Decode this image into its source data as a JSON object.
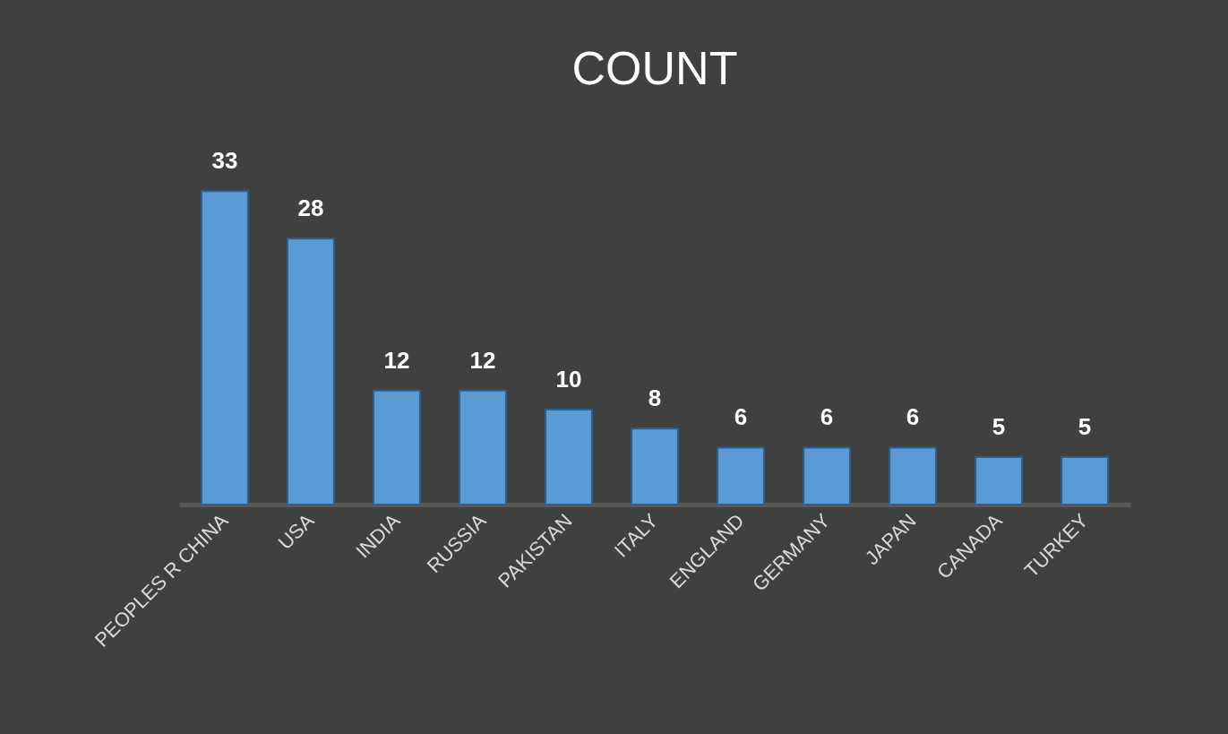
{
  "chart_data": {
    "type": "bar",
    "title": "COUNT",
    "categories": [
      "PEOPLES R CHINA",
      "USA",
      "INDIA",
      "RUSSIA",
      "PAKISTAN",
      "ITALY",
      "ENGLAND",
      "GERMANY",
      "JAPAN",
      "CANADA",
      "TURKEY"
    ],
    "values": [
      33,
      28,
      12,
      12,
      10,
      8,
      6,
      6,
      6,
      5,
      5
    ],
    "color": "#5b9bd5",
    "data_labels": true
  }
}
